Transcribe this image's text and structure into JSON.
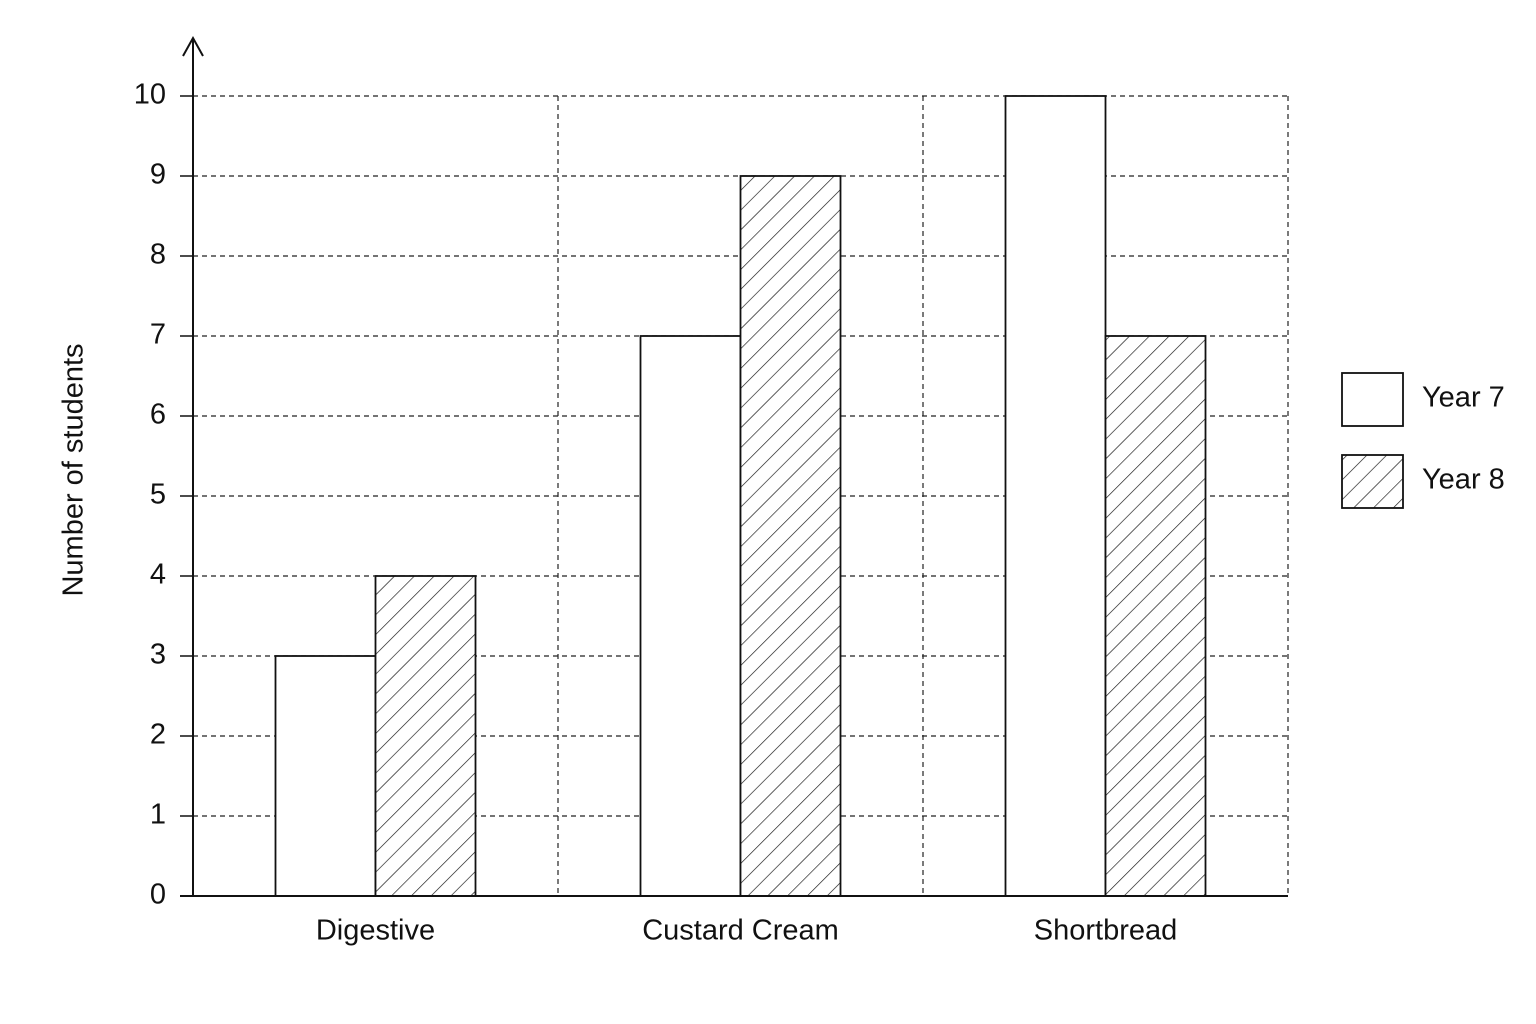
{
  "chart_data": {
    "type": "bar",
    "y_label": "Number of students",
    "categories": [
      "Digestive",
      "Custard Cream",
      "Shortbread"
    ],
    "series": [
      {
        "name": "Year 7",
        "color": "#ffffff",
        "hatch": false,
        "values": [
          3,
          7,
          10
        ]
      },
      {
        "name": "Year 8",
        "color": "#ffffff",
        "hatch": true,
        "values": [
          4,
          9,
          7
        ]
      }
    ],
    "ylim": [
      0,
      10
    ],
    "yticks": [
      0,
      1,
      2,
      3,
      4,
      5,
      6,
      7,
      8,
      9,
      10
    ],
    "grid": true,
    "legend": "right"
  }
}
